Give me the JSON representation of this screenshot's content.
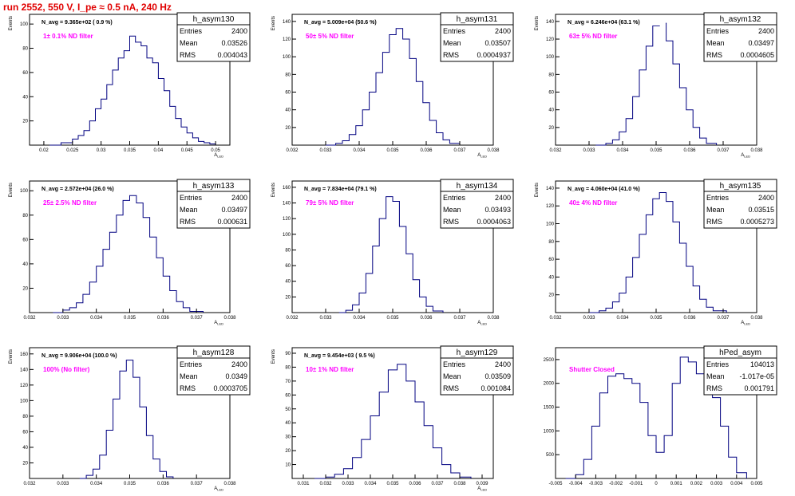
{
  "page_title": "run 2552,   550 V, I_pe ≈ 0.5 nA, 240 Hz",
  "colors": {
    "hist": "#000080",
    "annotation": "#ff00ff",
    "title": "#e00000",
    "axis": "#000000"
  },
  "stat_labels": {
    "entries": "Entries",
    "mean": "Mean",
    "rms": "RMS"
  },
  "chart_data": [
    {
      "type": "histogram",
      "name": "h_asym130",
      "navg": "N_avg = 9.365e+02 ( 0.9 %)",
      "filter": "1± 0.1% ND filter",
      "entries": "2400",
      "mean": "0.03526",
      "rms": "0.004043",
      "ylabel": "Events",
      "xlabel": "A_LED",
      "xlim": [
        0.0175,
        0.0525
      ],
      "ylim": [
        0,
        108
      ],
      "xticks": [
        0.02,
        0.025,
        0.03,
        0.035,
        0.04,
        0.045,
        0.05
      ],
      "xticklabels": [
        "0.02",
        "0.025",
        "0.03",
        "0.035",
        "0.04",
        "0.045",
        "0.05"
      ],
      "yticks": [
        20,
        40,
        60,
        80,
        100
      ],
      "x": [
        0.021,
        0.023,
        0.025,
        0.026,
        0.027,
        0.028,
        0.029,
        0.03,
        0.031,
        0.032,
        0.033,
        0.034,
        0.035,
        0.036,
        0.037,
        0.038,
        0.039,
        0.04,
        0.041,
        0.042,
        0.043,
        0.044,
        0.045,
        0.046,
        0.047,
        0.048,
        0.049,
        0.05
      ],
      "y": [
        0,
        2,
        5,
        8,
        12,
        20,
        30,
        38,
        50,
        62,
        72,
        78,
        90,
        85,
        82,
        72,
        68,
        55,
        45,
        32,
        22,
        15,
        10,
        6,
        3,
        2,
        1,
        0
      ]
    },
    {
      "type": "histogram",
      "name": "h_asym131",
      "navg": "N_avg = 5.009e+04 (50.6 %)",
      "filter": "50± 5% ND filter",
      "entries": "2400",
      "mean": "0.03507",
      "rms": "0.0004937",
      "ylabel": "Events",
      "xlabel": "A_LED",
      "xlim": [
        0.032,
        0.038
      ],
      "ylim": [
        0,
        148
      ],
      "xticks": [
        0.032,
        0.033,
        0.034,
        0.035,
        0.036,
        0.037,
        0.038
      ],
      "xticklabels": [
        "0.032",
        "0.033",
        "0.034",
        "0.035",
        "0.036",
        "0.037",
        "0.038"
      ],
      "yticks": [
        20,
        40,
        60,
        80,
        100,
        120,
        140
      ],
      "x": [
        0.033,
        0.0333,
        0.0335,
        0.0337,
        0.0339,
        0.0341,
        0.0343,
        0.0345,
        0.0347,
        0.0349,
        0.0351,
        0.0353,
        0.0355,
        0.0357,
        0.0359,
        0.0361,
        0.0363,
        0.0365,
        0.0367,
        0.037
      ],
      "y": [
        0,
        2,
        5,
        12,
        22,
        40,
        60,
        82,
        105,
        125,
        132,
        120,
        98,
        72,
        48,
        28,
        14,
        6,
        2,
        0
      ]
    },
    {
      "type": "histogram",
      "name": "h_asym132",
      "navg": "N_avg = 6.246e+04 (63.1 %)",
      "filter": "63± 5% ND filter",
      "entries": "2400",
      "mean": "0.03497",
      "rms": "0.0004605",
      "ylabel": "Events",
      "xlabel": "A_LED",
      "xlim": [
        0.032,
        0.038
      ],
      "ylim": [
        0,
        148
      ],
      "xticks": [
        0.032,
        0.033,
        0.034,
        0.035,
        0.036,
        0.037,
        0.038
      ],
      "xticklabels": [
        "0.032",
        "0.033",
        "0.034",
        "0.035",
        "0.036",
        "0.037",
        "0.038"
      ],
      "yticks": [
        20,
        40,
        60,
        80,
        100,
        120,
        140
      ],
      "x": [
        0.0332,
        0.0335,
        0.0337,
        0.0339,
        0.0341,
        0.0343,
        0.0345,
        0.0347,
        0.0349,
        0.0351,
        0.0353,
        0.0355,
        0.0357,
        0.0359,
        0.0361,
        0.0363,
        0.0365,
        0.0368
      ],
      "y": [
        0,
        2,
        6,
        15,
        30,
        55,
        85,
        112,
        135,
        138,
        118,
        92,
        65,
        40,
        20,
        8,
        2,
        0
      ]
    },
    {
      "type": "histogram",
      "name": "h_asym133",
      "navg": "N_avg = 2.572e+04 (26.0 %)",
      "filter": "25± 2.5% ND filter",
      "entries": "2400",
      "mean": "0.03497",
      "rms": "0.000631",
      "ylabel": "Events",
      "xlabel": "A_LED",
      "xlim": [
        0.032,
        0.038
      ],
      "ylim": [
        0,
        108
      ],
      "xticks": [
        0.032,
        0.033,
        0.034,
        0.035,
        0.036,
        0.037,
        0.038
      ],
      "xticklabels": [
        "0.032",
        "0.033",
        "0.034",
        "0.035",
        "0.036",
        "0.037",
        "0.038"
      ],
      "yticks": [
        20,
        40,
        60,
        80,
        100
      ],
      "x": [
        0.0327,
        0.033,
        0.0332,
        0.0334,
        0.0336,
        0.0338,
        0.034,
        0.0342,
        0.0344,
        0.0346,
        0.0348,
        0.035,
        0.0352,
        0.0354,
        0.0356,
        0.0358,
        0.036,
        0.0362,
        0.0364,
        0.0366,
        0.0368,
        0.0372
      ],
      "y": [
        0,
        2,
        4,
        8,
        15,
        25,
        38,
        52,
        66,
        80,
        92,
        96,
        90,
        78,
        62,
        45,
        30,
        18,
        9,
        4,
        1,
        0
      ]
    },
    {
      "type": "histogram",
      "name": "h_asym134",
      "navg": "N_avg = 7.834e+04 (79.1 %)",
      "filter": "79± 5% ND filter",
      "entries": "2400",
      "mean": "0.03493",
      "rms": "0.0004063",
      "ylabel": "Events",
      "xlabel": "A_LED",
      "xlim": [
        0.032,
        0.038
      ],
      "ylim": [
        0,
        168
      ],
      "xticks": [
        0.032,
        0.033,
        0.034,
        0.035,
        0.036,
        0.037,
        0.038
      ],
      "xticklabels": [
        "0.032",
        "0.033",
        "0.034",
        "0.035",
        "0.036",
        "0.037",
        "0.038"
      ],
      "yticks": [
        20,
        40,
        60,
        80,
        100,
        120,
        140,
        160
      ],
      "x": [
        0.0334,
        0.0336,
        0.0338,
        0.034,
        0.0342,
        0.0344,
        0.0346,
        0.0348,
        0.035,
        0.0352,
        0.0354,
        0.0356,
        0.0358,
        0.036,
        0.0362,
        0.0365
      ],
      "y": [
        0,
        3,
        10,
        25,
        50,
        85,
        120,
        148,
        142,
        110,
        75,
        42,
        20,
        8,
        2,
        0
      ]
    },
    {
      "type": "histogram",
      "name": "h_asym135",
      "navg": "N_avg = 4.060e+04 (41.0 %)",
      "filter": "40± 4% ND filter",
      "entries": "2400",
      "mean": "0.03515",
      "rms": "0.0005273",
      "ylabel": "Events",
      "xlabel": "A_LED",
      "xlim": [
        0.032,
        0.038
      ],
      "ylim": [
        0,
        148
      ],
      "xticks": [
        0.032,
        0.033,
        0.034,
        0.035,
        0.036,
        0.037,
        0.038
      ],
      "xticklabels": [
        "0.032",
        "0.033",
        "0.034",
        "0.035",
        "0.036",
        "0.037",
        "0.038"
      ],
      "yticks": [
        20,
        40,
        60,
        80,
        100,
        120,
        140
      ],
      "x": [
        0.033,
        0.0333,
        0.0335,
        0.0337,
        0.0339,
        0.0341,
        0.0343,
        0.0345,
        0.0347,
        0.0349,
        0.0351,
        0.0353,
        0.0355,
        0.0357,
        0.0359,
        0.0361,
        0.0363,
        0.0365,
        0.0367,
        0.0371
      ],
      "y": [
        0,
        2,
        5,
        12,
        22,
        40,
        62,
        88,
        110,
        128,
        135,
        125,
        102,
        78,
        52,
        30,
        15,
        6,
        2,
        0
      ]
    },
    {
      "type": "histogram",
      "name": "h_asym128",
      "navg": "N_avg = 9.906e+04 (100.0 %)",
      "filter": "100% (No filter)",
      "entries": "2400",
      "mean": "0.0349",
      "rms": "0.0003705",
      "ylabel": "Events",
      "xlabel": "A_LED",
      "xlim": [
        0.032,
        0.038
      ],
      "ylim": [
        0,
        168
      ],
      "xticks": [
        0.032,
        0.033,
        0.034,
        0.035,
        0.036,
        0.037,
        0.038
      ],
      "xticklabels": [
        "0.032",
        "0.033",
        "0.034",
        "0.035",
        "0.036",
        "0.037",
        "0.038"
      ],
      "yticks": [
        20,
        40,
        60,
        80,
        100,
        120,
        140,
        160
      ],
      "x": [
        0.0335,
        0.0337,
        0.0339,
        0.0341,
        0.0343,
        0.0345,
        0.0347,
        0.0349,
        0.0351,
        0.0353,
        0.0355,
        0.0357,
        0.0359,
        0.0361,
        0.0363
      ],
      "y": [
        0,
        4,
        12,
        30,
        62,
        102,
        138,
        152,
        130,
        92,
        55,
        25,
        9,
        2,
        0
      ]
    },
    {
      "type": "histogram",
      "name": "h_asym129",
      "navg": "N_avg = 9.454e+03 ( 9.5 %)",
      "filter": "10± 1% ND filter",
      "entries": "2400",
      "mean": "0.03509",
      "rms": "0.001084",
      "ylabel": "Events",
      "xlabel": "A_LED",
      "xlim": [
        0.0305,
        0.0395
      ],
      "ylim": [
        0,
        94
      ],
      "xticks": [
        0.031,
        0.032,
        0.033,
        0.034,
        0.035,
        0.036,
        0.037,
        0.038,
        0.039
      ],
      "xticklabels": [
        "0.031",
        "0.032",
        "0.033",
        "0.034",
        "0.035",
        "0.036",
        "0.037",
        "0.038",
        "0.039"
      ],
      "yticks": [
        10,
        20,
        30,
        40,
        50,
        60,
        70,
        80,
        90
      ],
      "x": [
        0.0315,
        0.032,
        0.0324,
        0.0328,
        0.0332,
        0.0336,
        0.034,
        0.0344,
        0.0348,
        0.0352,
        0.0356,
        0.036,
        0.0364,
        0.0368,
        0.0372,
        0.0376,
        0.038,
        0.0385
      ],
      "y": [
        0,
        1,
        3,
        7,
        15,
        28,
        45,
        62,
        78,
        82,
        70,
        55,
        38,
        22,
        10,
        4,
        1,
        0
      ]
    },
    {
      "type": "histogram",
      "name": "hPed_asym",
      "navg": "",
      "filter": "Shutter Closed",
      "entries": "104013",
      "mean": "-1.017e-05",
      "rms": "0.001791",
      "ylabel": "",
      "xlabel": "",
      "xlim": [
        -0.005,
        0.005
      ],
      "ylim": [
        0,
        2750
      ],
      "xticks": [
        -0.005,
        -0.004,
        -0.003,
        -0.002,
        -0.001,
        0,
        0.001,
        0.002,
        0.003,
        0.004,
        0.005
      ],
      "xticklabels": [
        "-0.005",
        "-0.004",
        "-0.003",
        "-0.002",
        "-0.001",
        "0",
        "0.001",
        "0.002",
        "0.003",
        "0.004",
        "0.005"
      ],
      "yticks": [
        500,
        1000,
        1500,
        2000,
        2500
      ],
      "x": [
        -0.0045,
        -0.004,
        -0.0036,
        -0.0032,
        -0.0028,
        -0.0024,
        -0.002,
        -0.0016,
        -0.0012,
        -0.0008,
        -0.0004,
        0.0,
        0.0004,
        0.0008,
        0.0012,
        0.0016,
        0.002,
        0.0024,
        0.0028,
        0.0032,
        0.0036,
        0.004,
        0.0045
      ],
      "y": [
        0,
        80,
        400,
        1100,
        1800,
        2150,
        2200,
        2100,
        2000,
        1600,
        900,
        550,
        900,
        2000,
        2550,
        2450,
        2200,
        2050,
        1700,
        1100,
        450,
        120,
        0
      ]
    }
  ]
}
